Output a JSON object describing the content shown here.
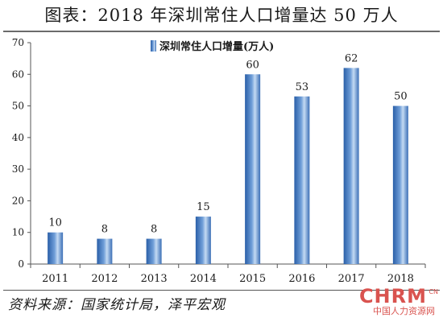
{
  "title": "图表：2018 年深圳常住人口增量达 50 万人",
  "source": "资料来源：国家统计局，泽平宏观",
  "watermark": {
    "logo": "CHRM",
    "suffix": "CN",
    "subtitle": "中国人力资源网"
  },
  "colors": {
    "bar_dark": "#2a5fa8",
    "bar_mid": "#6f9ed8",
    "bar_light": "#c4daf3",
    "axis": "#555555",
    "text": "#1a1a1a"
  },
  "chart_data": {
    "type": "bar",
    "title": "图表：2018 年深圳常住人口增量达 50 万人",
    "xlabel": "",
    "ylabel": "",
    "categories": [
      "2011",
      "2012",
      "2013",
      "2014",
      "2015",
      "2016",
      "2017",
      "2018"
    ],
    "series": [
      {
        "name": "深圳常住人口增量(万人)",
        "values": [
          10,
          8,
          8,
          15,
          60,
          53,
          62,
          50
        ]
      }
    ],
    "data_labels": [
      "10",
      "8",
      "8",
      "15",
      "60",
      "53",
      "62",
      "50"
    ],
    "ylim": [
      0,
      70
    ],
    "yticks": [
      0,
      10,
      20,
      30,
      40,
      50,
      60,
      70
    ],
    "grid": false,
    "legend_position": "top-center"
  }
}
